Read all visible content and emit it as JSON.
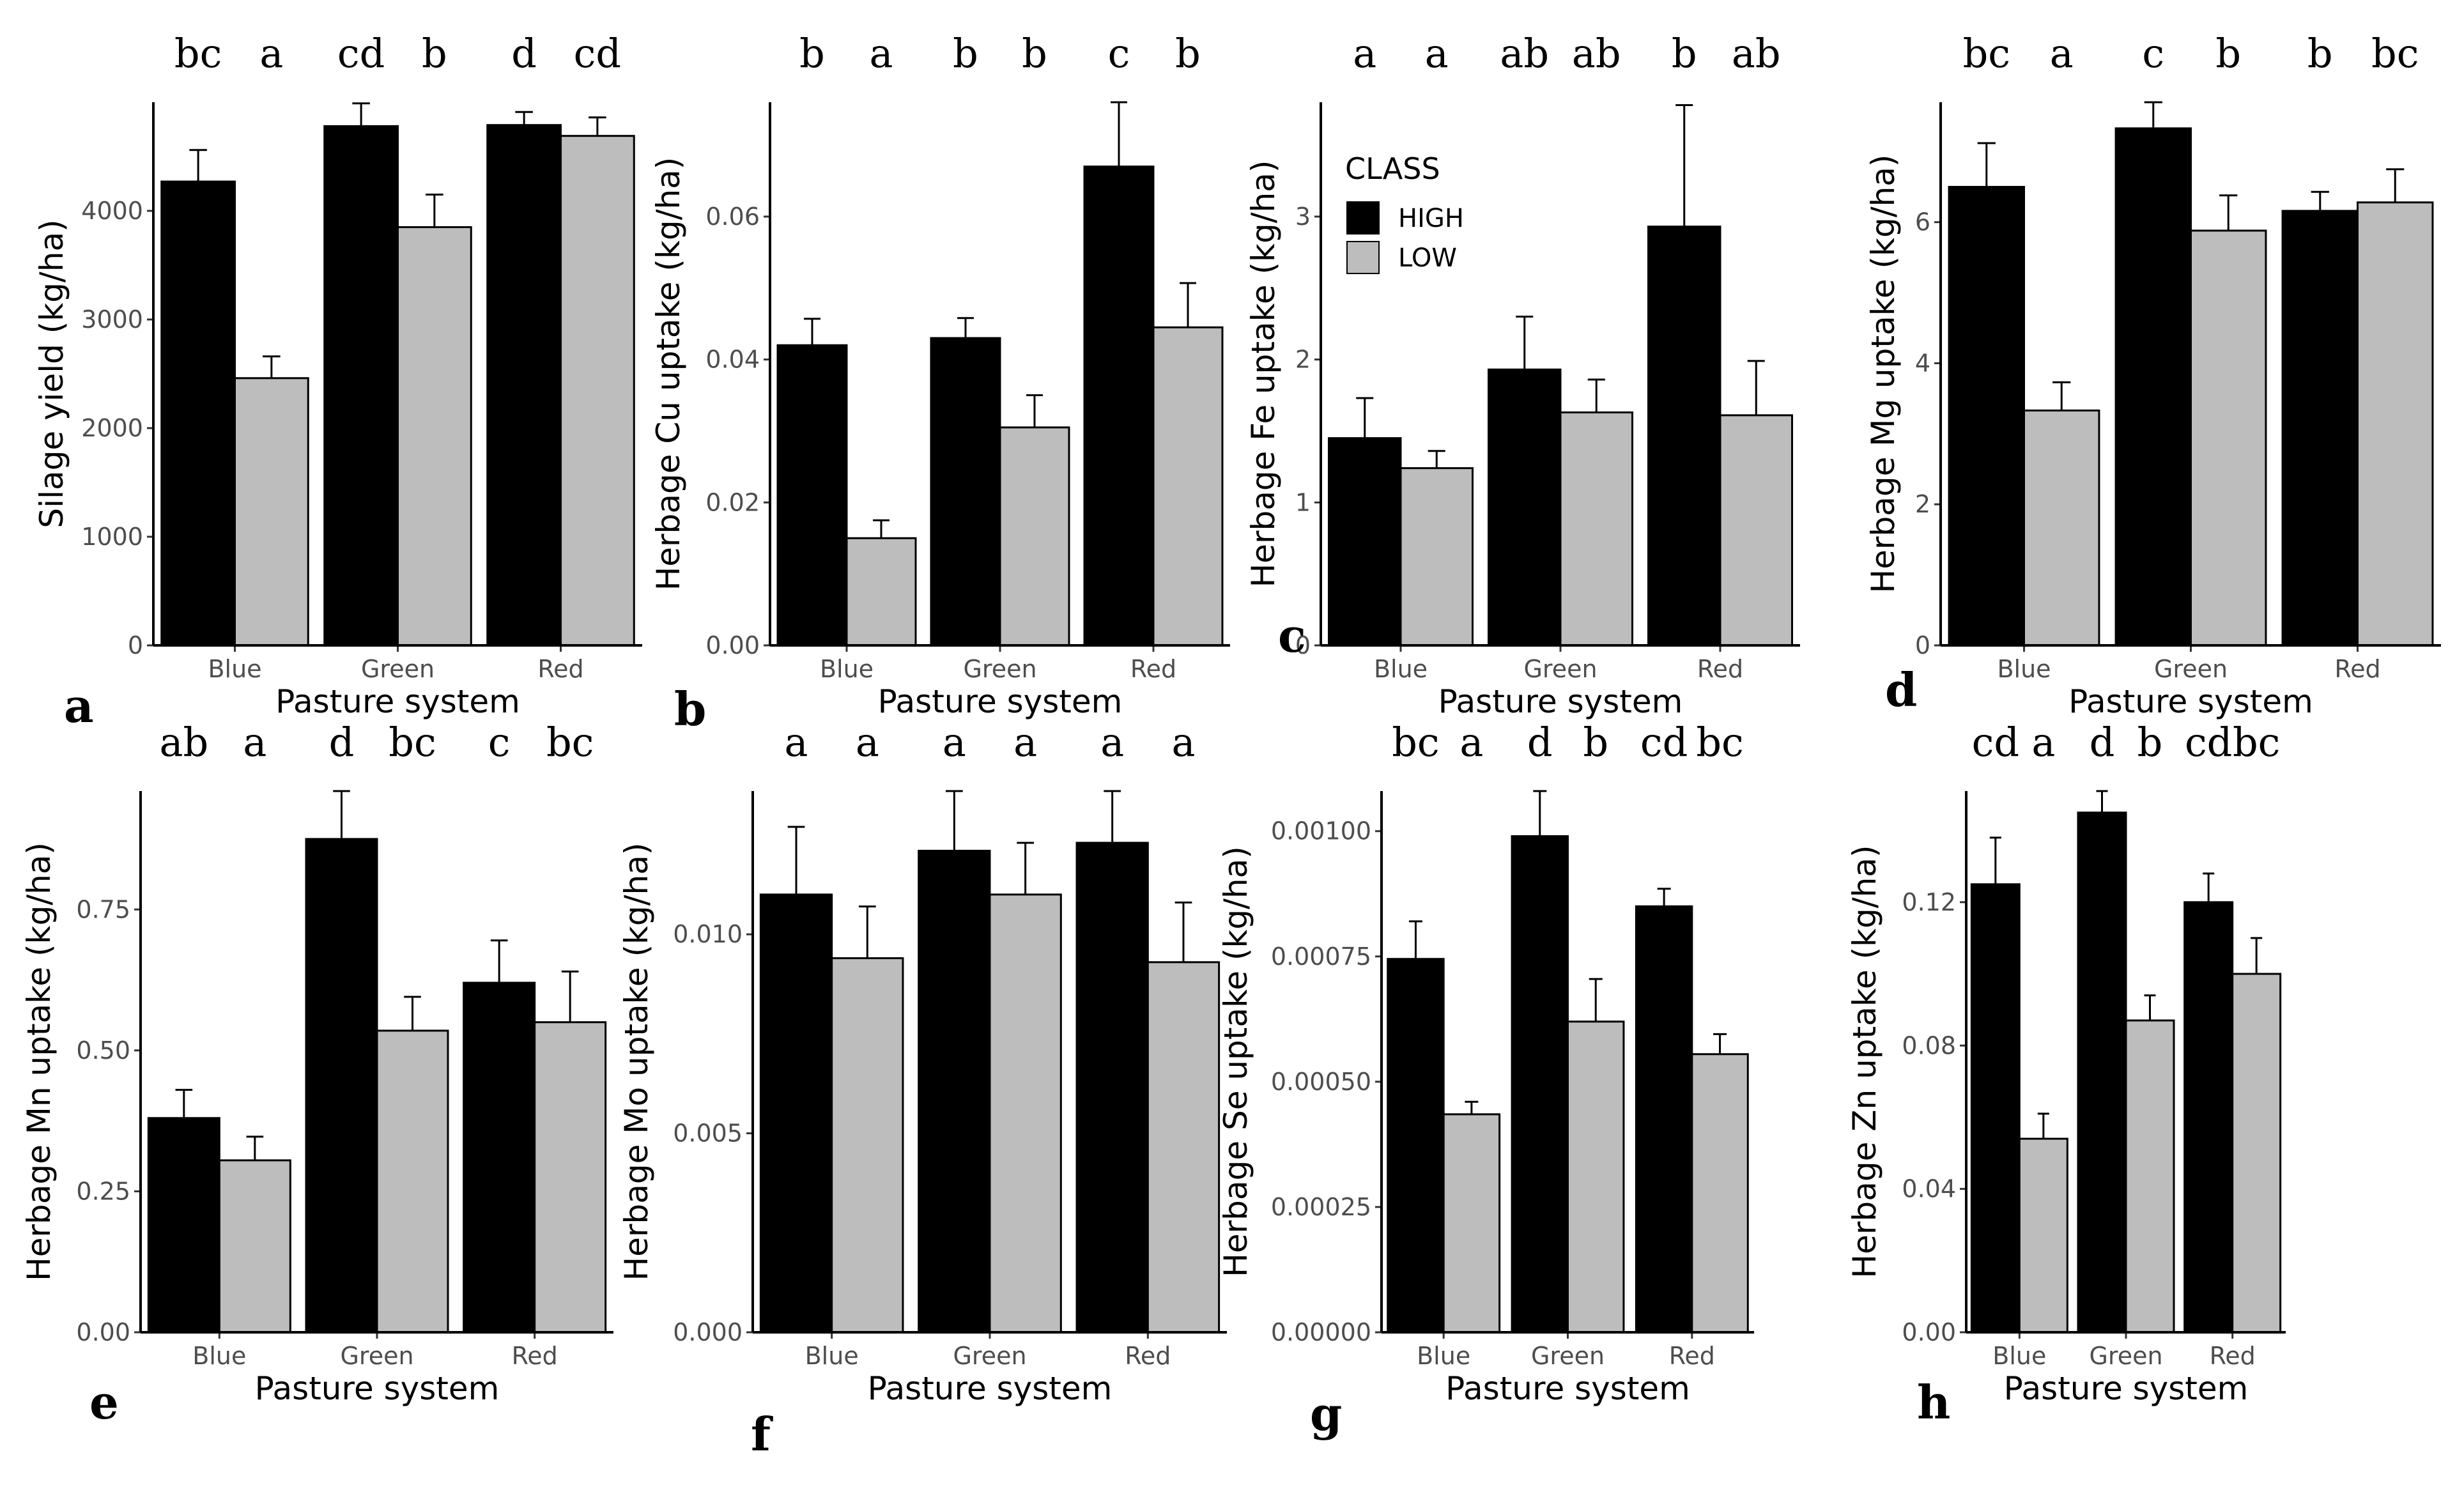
{
  "legend": {
    "title": "CLASS",
    "entries": [
      {
        "label": "HIGH",
        "color": "#000000"
      },
      {
        "label": "LOW",
        "color": "#bdbdbd"
      }
    ]
  },
  "colors": {
    "HIGH": "#000000",
    "LOW": "#bdbdbd",
    "axis": "#000000",
    "tick_text": "#4d4d4d"
  },
  "chart_data": [
    {
      "type": "bar",
      "panel": "a",
      "categories": [
        "Blue",
        "Green",
        "Red"
      ],
      "xlabel": "Pasture system",
      "ylabel": "Silage yield (kg/ha)",
      "ylim": [
        0,
        5000
      ],
      "yticks": [
        0,
        1000,
        2000,
        3000,
        4000
      ],
      "ytick_labels": [
        "0",
        "1000",
        "2000",
        "3000",
        "4000"
      ],
      "series": [
        {
          "name": "HIGH",
          "values": [
            4270,
            4780,
            4790
          ],
          "errors": [
            290,
            210,
            120
          ]
        },
        {
          "name": "LOW",
          "values": [
            2460,
            3850,
            4690
          ],
          "errors": [
            200,
            300,
            170
          ]
        }
      ],
      "letters": [
        "bc",
        "a",
        "cd",
        "b",
        "d",
        "cd"
      ]
    },
    {
      "type": "bar",
      "panel": "b",
      "categories": [
        "Blue",
        "Green",
        "Red"
      ],
      "xlabel": "Pasture system",
      "ylabel": "Herbage Cu uptake (kg/ha)",
      "ylim": [
        0,
        0.076
      ],
      "yticks": [
        0,
        0.02,
        0.04,
        0.06
      ],
      "ytick_labels": [
        "0.00",
        "0.02",
        "0.04",
        "0.06"
      ],
      "series": [
        {
          "name": "HIGH",
          "values": [
            0.042,
            0.043,
            0.067
          ],
          "errors": [
            0.0037,
            0.0028,
            0.0095
          ]
        },
        {
          "name": "LOW",
          "values": [
            0.015,
            0.0305,
            0.0445
          ],
          "errors": [
            0.0025,
            0.0045,
            0.0062
          ]
        }
      ],
      "letters": [
        "b",
        "a",
        "b",
        "b",
        "c",
        "b"
      ]
    },
    {
      "type": "bar",
      "panel": "c",
      "categories": [
        "Blue",
        "Green",
        "Red"
      ],
      "xlabel": "Pasture system",
      "ylabel": "Herbage Fe uptake (kg/ha)",
      "ylim": [
        0,
        3.8
      ],
      "yticks": [
        0,
        1,
        2,
        3
      ],
      "ytick_labels": [
        "0",
        "1",
        "2",
        "3"
      ],
      "series": [
        {
          "name": "HIGH",
          "values": [
            1.45,
            1.93,
            2.93
          ],
          "errors": [
            0.28,
            0.37,
            0.85
          ]
        },
        {
          "name": "LOW",
          "values": [
            1.24,
            1.63,
            1.61
          ],
          "errors": [
            0.12,
            0.23,
            0.38
          ]
        }
      ],
      "letters": [
        "a",
        "a",
        "ab",
        "ab",
        "b",
        "ab"
      ]
    },
    {
      "type": "bar",
      "panel": "d",
      "categories": [
        "Blue",
        "Green",
        "Red"
      ],
      "xlabel": "Pasture system",
      "ylabel": "Herbage Mg uptake (kg/ha)",
      "ylim": [
        0,
        7.7
      ],
      "yticks": [
        0,
        2,
        4,
        6
      ],
      "ytick_labels": [
        "0",
        "2",
        "4",
        "6"
      ],
      "series": [
        {
          "name": "HIGH",
          "values": [
            6.5,
            7.33,
            6.16
          ],
          "errors": [
            0.62,
            0.38,
            0.27
          ]
        },
        {
          "name": "LOW",
          "values": [
            3.33,
            5.88,
            6.28
          ],
          "errors": [
            0.4,
            0.5,
            0.47
          ]
        }
      ],
      "letters": [
        "bc",
        "a",
        "c",
        "b",
        "b",
        "bc"
      ]
    },
    {
      "type": "bar",
      "panel": "e",
      "categories": [
        "Blue",
        "Green",
        "Red"
      ],
      "xlabel": "Pasture system",
      "ylabel": "Herbage Mn uptake (kg/ha)",
      "ylim": [
        0,
        0.96
      ],
      "yticks": [
        0,
        0.25,
        0.5,
        0.75
      ],
      "ytick_labels": [
        "0.00",
        "0.25",
        "0.50",
        "0.75"
      ],
      "series": [
        {
          "name": "HIGH",
          "values": [
            0.38,
            0.875,
            0.62
          ],
          "errors": [
            0.05,
            0.095,
            0.075
          ]
        },
        {
          "name": "LOW",
          "values": [
            0.305,
            0.535,
            0.55
          ],
          "errors": [
            0.042,
            0.06,
            0.09
          ]
        }
      ],
      "letters": [
        "ab",
        "a",
        "d",
        "bc",
        "c",
        "bc"
      ]
    },
    {
      "type": "bar",
      "panel": "f",
      "categories": [
        "Blue",
        "Green",
        "Red"
      ],
      "xlabel": "Pasture system",
      "ylabel": "Herbage Mo uptake (kg/ha)",
      "ylim": [
        0,
        0.0136
      ],
      "yticks": [
        0,
        0.005,
        0.01
      ],
      "ytick_labels": [
        "0.000",
        "0.005",
        "0.010"
      ],
      "series": [
        {
          "name": "HIGH",
          "values": [
            0.011,
            0.0121,
            0.0123
          ],
          "errors": [
            0.0017,
            0.0015,
            0.0013
          ]
        },
        {
          "name": "LOW",
          "values": [
            0.0094,
            0.011,
            0.0093
          ],
          "errors": [
            0.0013,
            0.0013,
            0.0015
          ]
        }
      ],
      "letters": [
        "a",
        "a",
        "a",
        "a",
        "a",
        "a"
      ]
    },
    {
      "type": "bar",
      "panel": "g",
      "categories": [
        "Blue",
        "Green",
        "Red"
      ],
      "xlabel": "Pasture system",
      "ylabel": "Herbage Se uptake (kg/ha)",
      "ylim": [
        0,
        0.00108
      ],
      "yticks": [
        0,
        0.00025,
        0.0005,
        0.00075,
        0.001
      ],
      "ytick_labels": [
        "0.00000",
        "0.00025",
        "0.00050",
        "0.00075",
        "0.00100"
      ],
      "series": [
        {
          "name": "HIGH",
          "values": [
            0.000745,
            0.00099,
            0.00085
          ],
          "errors": [
            7.5e-05,
            9e-05,
            3.5e-05
          ]
        },
        {
          "name": "LOW",
          "values": [
            0.000435,
            0.00062,
            0.000555
          ],
          "errors": [
            2.5e-05,
            8.5e-05,
            4e-05
          ]
        }
      ],
      "letters": [
        "bc",
        "a",
        "d",
        "b",
        "cd",
        "bc"
      ]
    },
    {
      "type": "bar",
      "panel": "h",
      "categories": [
        "Blue",
        "Green",
        "Red"
      ],
      "xlabel": "Pasture system",
      "ylabel": "Herbage Zn uptake (kg/ha)",
      "ylim": [
        0,
        0.151
      ],
      "yticks": [
        0,
        0.04,
        0.08,
        0.12
      ],
      "ytick_labels": [
        "0.00",
        "0.04",
        "0.08",
        "0.12"
      ],
      "series": [
        {
          "name": "HIGH",
          "values": [
            0.125,
            0.145,
            0.12
          ],
          "errors": [
            0.013,
            0.01,
            0.008
          ]
        },
        {
          "name": "LOW",
          "values": [
            0.054,
            0.087,
            0.1
          ],
          "errors": [
            0.007,
            0.007,
            0.01
          ]
        }
      ],
      "letters": [
        "cd",
        "a",
        "d",
        "b",
        "cd",
        "bc"
      ]
    }
  ]
}
